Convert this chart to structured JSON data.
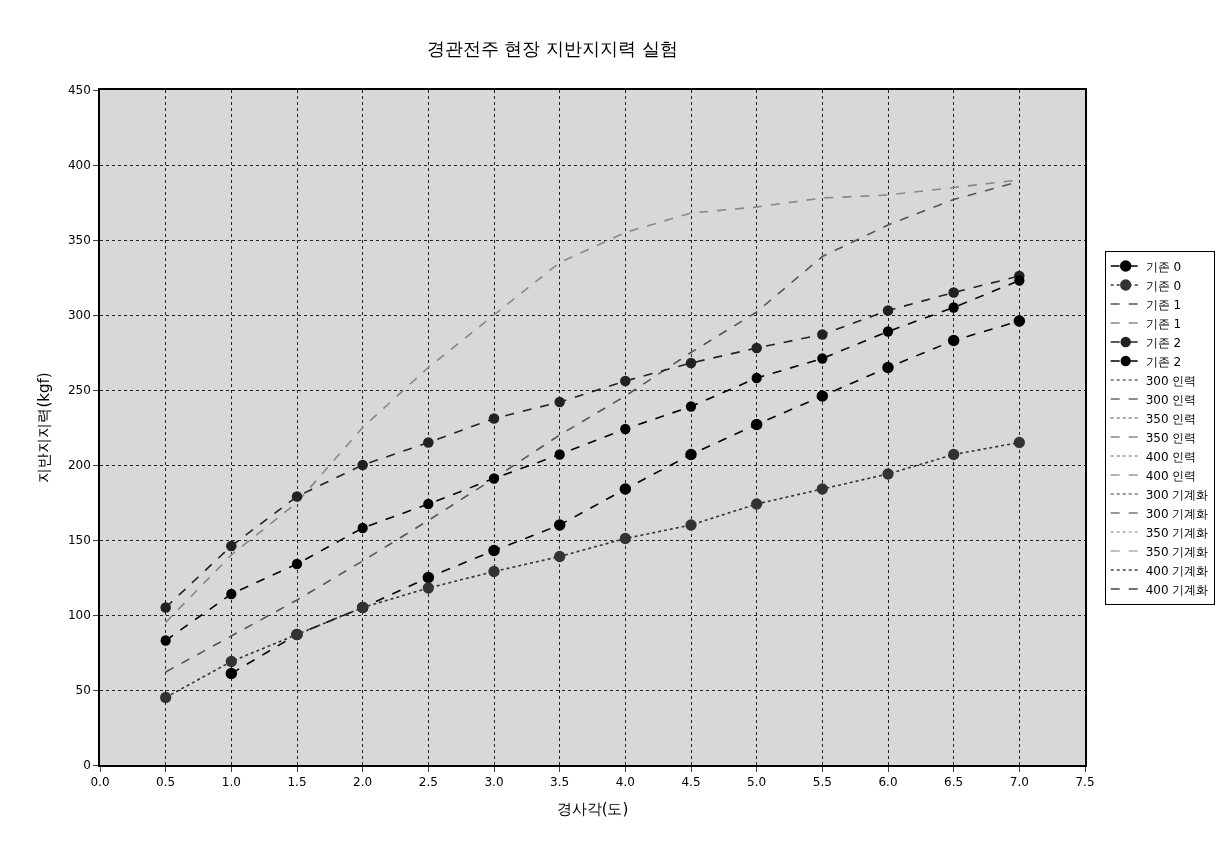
{
  "chart_data": {
    "type": "line",
    "title": "경관전주 현장 지반지지력 실험",
    "xlabel": "경사각(도)",
    "ylabel": "지반지지력(kgf)",
    "x": [
      0.5,
      1.0,
      1.5,
      2.0,
      2.5,
      3.0,
      3.5,
      4.0,
      4.5,
      5.0,
      5.5,
      6.0,
      6.5,
      7.0
    ],
    "xlim": [
      0,
      7.5
    ],
    "ylim": [
      0,
      450
    ],
    "xticks": [
      {
        "value": 0,
        "label": "0.0"
      },
      0.5,
      {
        "value": 1,
        "label": "1.0"
      },
      1.5,
      {
        "value": 2,
        "label": "2.0"
      },
      2.5,
      {
        "value": 3,
        "label": "3.0"
      },
      3.5,
      {
        "value": 4,
        "label": "4.0"
      },
      4.5,
      {
        "value": 5,
        "label": "5.0"
      },
      5.5,
      {
        "value": 6,
        "label": "6.0"
      },
      6.5,
      {
        "value": 7,
        "label": "7.0"
      },
      7.5
    ],
    "yticks": [
      0,
      50,
      100,
      150,
      200,
      250,
      300,
      350,
      400,
      450
    ],
    "grid": true,
    "legend": "right",
    "series": [
      {
        "name": "기존 0",
        "color": "#000000",
        "marker": "circle",
        "line_style": "dashed",
        "values": [
          null,
          61,
          87,
          105,
          125,
          143,
          160,
          184,
          207,
          227,
          246,
          265,
          283,
          296
        ]
      },
      {
        "name": "기존 0",
        "color": "#333333",
        "marker": "circle",
        "line_style": "dotted",
        "values": [
          45,
          69,
          87,
          105,
          118,
          129,
          139,
          151,
          160,
          174,
          184,
          194,
          207,
          215
        ]
      },
      {
        "name": "기존 1",
        "color": "#555555",
        "marker": "none",
        "line_style": "dashed",
        "values": [
          62,
          86,
          110,
          136,
          163,
          191,
          220,
          246,
          275,
          302,
          339,
          360,
          377,
          389
        ]
      },
      {
        "name": "기존 1",
        "color": "#888888",
        "marker": "none",
        "line_style": "dashed",
        "values": [
          95,
          140,
          175,
          225,
          265,
          300,
          335,
          355,
          368,
          372,
          378,
          380,
          385,
          390
        ]
      },
      {
        "name": "기존 2",
        "color": "#222222",
        "marker": "circle",
        "line_style": "dashed",
        "values": [
          105,
          146,
          179,
          200,
          215,
          231,
          242,
          256,
          268,
          278,
          287,
          303,
          315,
          326
        ]
      },
      {
        "name": "기존 2",
        "color": "#000000",
        "marker": "circle",
        "line_style": "dashed",
        "values": [
          83,
          114,
          134,
          158,
          174,
          191,
          207,
          224,
          239,
          258,
          271,
          289,
          305,
          323
        ]
      },
      {
        "name": "300 인력",
        "color": "#666666",
        "marker": "none",
        "line_style": "dotted",
        "values": [
          null,
          null,
          null,
          null,
          null,
          null,
          null,
          null,
          null,
          null,
          null,
          null,
          null,
          null
        ]
      },
      {
        "name": "300 인력",
        "color": "#666666",
        "marker": "none",
        "line_style": "dashed",
        "values": [
          null,
          null,
          null,
          null,
          null,
          null,
          null,
          null,
          null,
          null,
          null,
          null,
          null,
          null
        ]
      },
      {
        "name": "350 인력",
        "color": "#888888",
        "marker": "none",
        "line_style": "dotted",
        "values": [
          null,
          null,
          null,
          null,
          null,
          null,
          null,
          null,
          null,
          null,
          null,
          null,
          null,
          null
        ]
      },
      {
        "name": "350 인력",
        "color": "#888888",
        "marker": "none",
        "line_style": "dashed",
        "values": [
          null,
          null,
          null,
          null,
          null,
          null,
          null,
          null,
          null,
          null,
          null,
          null,
          null,
          null
        ]
      },
      {
        "name": "400 인력",
        "color": "#999999",
        "marker": "none",
        "line_style": "dotted",
        "values": [
          null,
          null,
          null,
          null,
          null,
          null,
          null,
          null,
          null,
          null,
          null,
          null,
          null,
          null
        ]
      },
      {
        "name": "400 인력",
        "color": "#999999",
        "marker": "none",
        "line_style": "dashed",
        "values": [
          null,
          null,
          null,
          null,
          null,
          null,
          null,
          null,
          null,
          null,
          null,
          null,
          null,
          null
        ]
      },
      {
        "name": "300 기계화",
        "color": "#777777",
        "marker": "none",
        "line_style": "dotted",
        "values": [
          null,
          null,
          null,
          null,
          null,
          null,
          null,
          null,
          null,
          null,
          null,
          null,
          null,
          null
        ]
      },
      {
        "name": "300 기계화",
        "color": "#777777",
        "marker": "none",
        "line_style": "dashed",
        "values": [
          null,
          null,
          null,
          null,
          null,
          null,
          null,
          null,
          null,
          null,
          null,
          null,
          null,
          null
        ]
      },
      {
        "name": "350 기계화",
        "color": "#aaaaaa",
        "marker": "none",
        "line_style": "dotted",
        "values": [
          null,
          null,
          null,
          null,
          null,
          null,
          null,
          null,
          null,
          null,
          null,
          null,
          null,
          null
        ]
      },
      {
        "name": "350 기계화",
        "color": "#aaaaaa",
        "marker": "none",
        "line_style": "dashed",
        "values": [
          null,
          null,
          null,
          null,
          null,
          null,
          null,
          null,
          null,
          null,
          null,
          null,
          null,
          null
        ]
      },
      {
        "name": "400 기계화",
        "color": "#444444",
        "marker": "none",
        "line_style": "dotted",
        "values": [
          null,
          null,
          null,
          null,
          null,
          null,
          null,
          null,
          null,
          null,
          null,
          null,
          null,
          null
        ]
      },
      {
        "name": "400 기계화",
        "color": "#444444",
        "marker": "none",
        "line_style": "dashed",
        "values": [
          null,
          null,
          null,
          null,
          null,
          null,
          null,
          null,
          null,
          null,
          null,
          null,
          null,
          null
        ]
      }
    ]
  }
}
